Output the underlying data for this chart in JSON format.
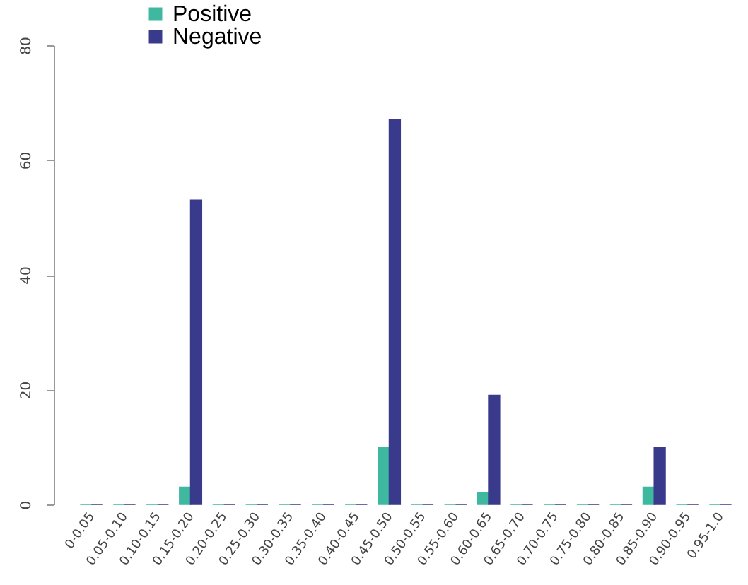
{
  "chart_data": {
    "type": "bar",
    "categories": [
      "0-0.05",
      "0.05-0.10",
      "0.10-0.15",
      "0.15-0.20",
      "0.20-0.25",
      "0.25-0.30",
      "0.30-0.35",
      "0.35-0.40",
      "0.40-0.45",
      "0.45-0.50",
      "0.50-0.55",
      "0.55-0.60",
      "0.60-0.65",
      "0.65-0.70",
      "0.70-0.75",
      "0.75-0.80",
      "0.80-0.85",
      "0.85-0.90",
      "0.90-0.95",
      "0.95-1.0"
    ],
    "series": [
      {
        "name": "Positive",
        "color": "#3fb8a0",
        "values": [
          0,
          0,
          0,
          3,
          0,
          0,
          0,
          0,
          0,
          10,
          0,
          0,
          2,
          0,
          0,
          0,
          0,
          3,
          0,
          0
        ]
      },
      {
        "name": "Negative",
        "color": "#3a3a8c",
        "values": [
          0,
          0,
          0,
          53,
          0,
          0,
          0,
          0,
          0,
          67,
          0,
          0,
          19,
          0,
          0,
          0,
          0,
          10,
          0,
          0
        ]
      }
    ],
    "ylim": [
      0,
      80
    ],
    "yticks": [
      0,
      20,
      40,
      60,
      80
    ],
    "grid": false,
    "legend": "top left"
  }
}
